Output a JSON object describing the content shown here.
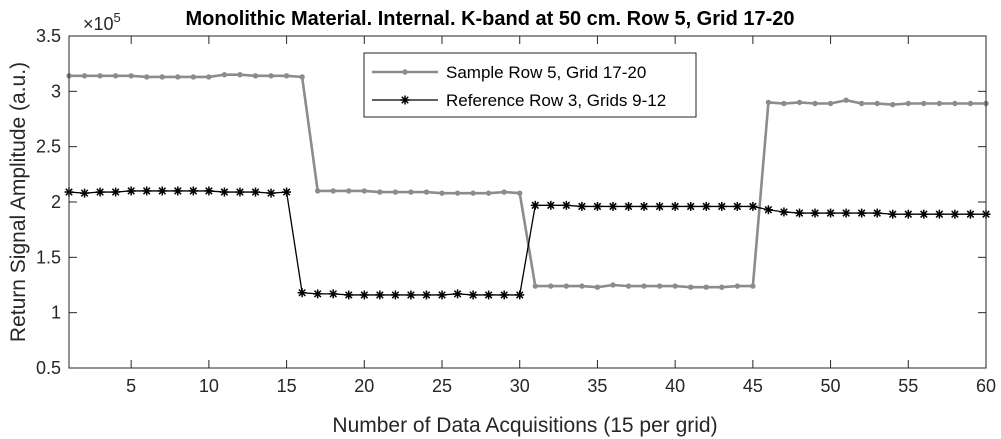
{
  "chart_data": {
    "type": "line",
    "title": "Monolithic Material. Internal. K-band at 50 cm. Row 5, Grid 17-20",
    "xlabel": "Number of Data Acquisitions (15 per grid)",
    "ylabel": "Return Signal Amplitude (a.u.)",
    "y_multiplier_base": "×10",
    "y_multiplier_exp": "5",
    "xlim": [
      1,
      60
    ],
    "ylim": [
      0.5,
      3.5
    ],
    "x_ticks": [
      5,
      10,
      15,
      20,
      25,
      30,
      35,
      40,
      45,
      50,
      55,
      60
    ],
    "x_tick_labels": [
      "5",
      "10",
      "15",
      "20",
      "25",
      "30",
      "35",
      "40",
      "45",
      "50",
      "55",
      "60"
    ],
    "y_ticks": [
      0.5,
      1,
      1.5,
      2,
      2.5,
      3,
      3.5
    ],
    "y_tick_labels": [
      "0.5",
      "1",
      "1.5",
      "2",
      "2.5",
      "3",
      "3.5"
    ],
    "grid": false,
    "legend_placement": "top-center",
    "x": [
      1,
      2,
      3,
      4,
      5,
      6,
      7,
      8,
      9,
      10,
      11,
      12,
      13,
      14,
      15,
      16,
      17,
      18,
      19,
      20,
      21,
      22,
      23,
      24,
      25,
      26,
      27,
      28,
      29,
      30,
      31,
      32,
      33,
      34,
      35,
      36,
      37,
      38,
      39,
      40,
      41,
      42,
      43,
      44,
      45,
      46,
      47,
      48,
      49,
      50,
      51,
      52,
      53,
      54,
      55,
      56,
      57,
      58,
      59,
      60
    ],
    "series": [
      {
        "name": "Sample Row 5, Grid 17-20",
        "color": "#8c8c8c",
        "marker": "dot",
        "values": [
          3.14,
          3.14,
          3.14,
          3.14,
          3.14,
          3.13,
          3.13,
          3.13,
          3.13,
          3.13,
          3.15,
          3.15,
          3.14,
          3.14,
          3.14,
          3.13,
          2.1,
          2.1,
          2.1,
          2.1,
          2.09,
          2.09,
          2.09,
          2.09,
          2.08,
          2.08,
          2.08,
          2.08,
          2.09,
          2.08,
          1.24,
          1.24,
          1.24,
          1.24,
          1.23,
          1.25,
          1.24,
          1.24,
          1.24,
          1.24,
          1.23,
          1.23,
          1.23,
          1.24,
          1.24,
          2.9,
          2.89,
          2.9,
          2.89,
          2.89,
          2.92,
          2.89,
          2.89,
          2.88,
          2.89,
          2.89,
          2.89,
          2.89,
          2.89,
          2.89
        ]
      },
      {
        "name": "Reference Row 3, Grids 9-12",
        "color": "#000000",
        "marker": "star",
        "values": [
          2.09,
          2.08,
          2.09,
          2.09,
          2.1,
          2.1,
          2.1,
          2.1,
          2.1,
          2.1,
          2.09,
          2.09,
          2.09,
          2.08,
          2.09,
          1.18,
          1.17,
          1.17,
          1.16,
          1.16,
          1.16,
          1.16,
          1.16,
          1.16,
          1.16,
          1.17,
          1.16,
          1.16,
          1.16,
          1.16,
          1.97,
          1.97,
          1.97,
          1.96,
          1.96,
          1.96,
          1.96,
          1.96,
          1.96,
          1.96,
          1.96,
          1.96,
          1.96,
          1.96,
          1.96,
          1.93,
          1.91,
          1.9,
          1.9,
          1.9,
          1.9,
          1.9,
          1.9,
          1.89,
          1.89,
          1.89,
          1.89,
          1.89,
          1.89,
          1.89
        ]
      }
    ]
  }
}
